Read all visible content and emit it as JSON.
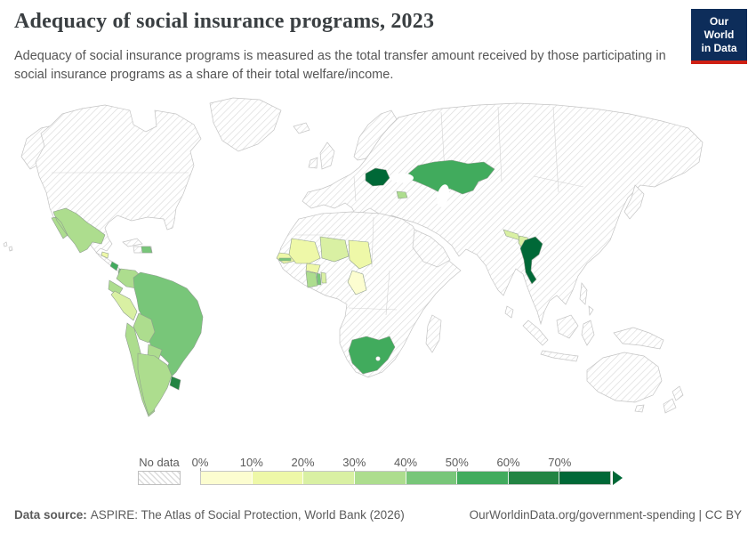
{
  "header": {
    "title": "Adequacy of social insurance programs, 2023",
    "subtitle": "Adequacy of social insurance programs is measured as the total transfer amount received by those participating in social insurance programs as a share of their total welfare/income.",
    "logo": {
      "line1": "Our World",
      "line2": "in Data",
      "bg_color": "#0d2d5a",
      "accent_color": "#cf2014"
    }
  },
  "legend": {
    "no_data_label": "No data",
    "tick_labels": [
      "0%",
      "10%",
      "20%",
      "30%",
      "40%",
      "50%",
      "60%",
      "70%"
    ],
    "thresholds": [
      0,
      10,
      20,
      30,
      40,
      50,
      60,
      70
    ],
    "colors": [
      "#fcfdd0",
      "#eef8a8",
      "#d9f0a3",
      "#addd8e",
      "#78c679",
      "#41ab5d",
      "#238443",
      "#006837"
    ]
  },
  "footer": {
    "source_label": "Data source:",
    "source_text": "ASPIRE: The Atlas of Social Protection, World Bank (2026)",
    "link_text": "OurWorldinData.org/government-spending | CC BY"
  },
  "chart_data": {
    "type": "choropleth_map",
    "title": "Adequacy of social insurance programs, 2023",
    "year": 2023,
    "unit": "%",
    "value_description": "Total transfer amount received by those participating in social insurance programs as a share of their total welfare/income",
    "no_data_style": "hatched",
    "bins": [
      "0-10%",
      "10-20%",
      "20-30%",
      "30-40%",
      "40-50%",
      "50-60%",
      "60-70%",
      "70%+"
    ],
    "countries": [
      {
        "name": "Mexico",
        "value": 35,
        "bin": "30-40%"
      },
      {
        "name": "El Salvador",
        "value": 15,
        "bin": "10-20%"
      },
      {
        "name": "Costa Rica",
        "value": 55,
        "bin": "50-60%"
      },
      {
        "name": "Panama",
        "value": 45,
        "bin": "40-50%"
      },
      {
        "name": "Dominican Republic",
        "value": 45,
        "bin": "40-50%"
      },
      {
        "name": "Colombia",
        "value": 35,
        "bin": "30-40%"
      },
      {
        "name": "Ecuador",
        "value": 35,
        "bin": "30-40%"
      },
      {
        "name": "Peru",
        "value": 25,
        "bin": "20-30%"
      },
      {
        "name": "Brazil",
        "value": 45,
        "bin": "40-50%"
      },
      {
        "name": "Bolivia",
        "value": 35,
        "bin": "30-40%"
      },
      {
        "name": "Paraguay",
        "value": 35,
        "bin": "30-40%"
      },
      {
        "name": "Chile",
        "value": 35,
        "bin": "30-40%"
      },
      {
        "name": "Argentina",
        "value": 35,
        "bin": "30-40%"
      },
      {
        "name": "Uruguay",
        "value": 65,
        "bin": "60-70%"
      },
      {
        "name": "Senegal",
        "value": 15,
        "bin": "10-20%"
      },
      {
        "name": "Gambia",
        "value": 45,
        "bin": "40-50%"
      },
      {
        "name": "Mali",
        "value": 15,
        "bin": "10-20%"
      },
      {
        "name": "Burkina Faso",
        "value": 15,
        "bin": "10-20%"
      },
      {
        "name": "Niger",
        "value": 25,
        "bin": "20-30%"
      },
      {
        "name": "Chad",
        "value": 15,
        "bin": "10-20%"
      },
      {
        "name": "Ghana",
        "value": 35,
        "bin": "30-40%"
      },
      {
        "name": "Togo",
        "value": 45,
        "bin": "40-50%"
      },
      {
        "name": "Benin",
        "value": 25,
        "bin": "20-30%"
      },
      {
        "name": "Cameroon",
        "value": 5,
        "bin": "0-10%"
      },
      {
        "name": "South Africa",
        "value": 55,
        "bin": "50-60%"
      },
      {
        "name": "Romania",
        "value": 75,
        "bin": "70%+"
      },
      {
        "name": "Kazakhstan",
        "value": 55,
        "bin": "50-60%"
      },
      {
        "name": "Armenia",
        "value": 35,
        "bin": "30-40%"
      },
      {
        "name": "Nepal",
        "value": 25,
        "bin": "20-30%"
      },
      {
        "name": "Bangladesh",
        "value": 25,
        "bin": "20-30%"
      },
      {
        "name": "Thailand",
        "value": 75,
        "bin": "70%+"
      }
    ]
  }
}
